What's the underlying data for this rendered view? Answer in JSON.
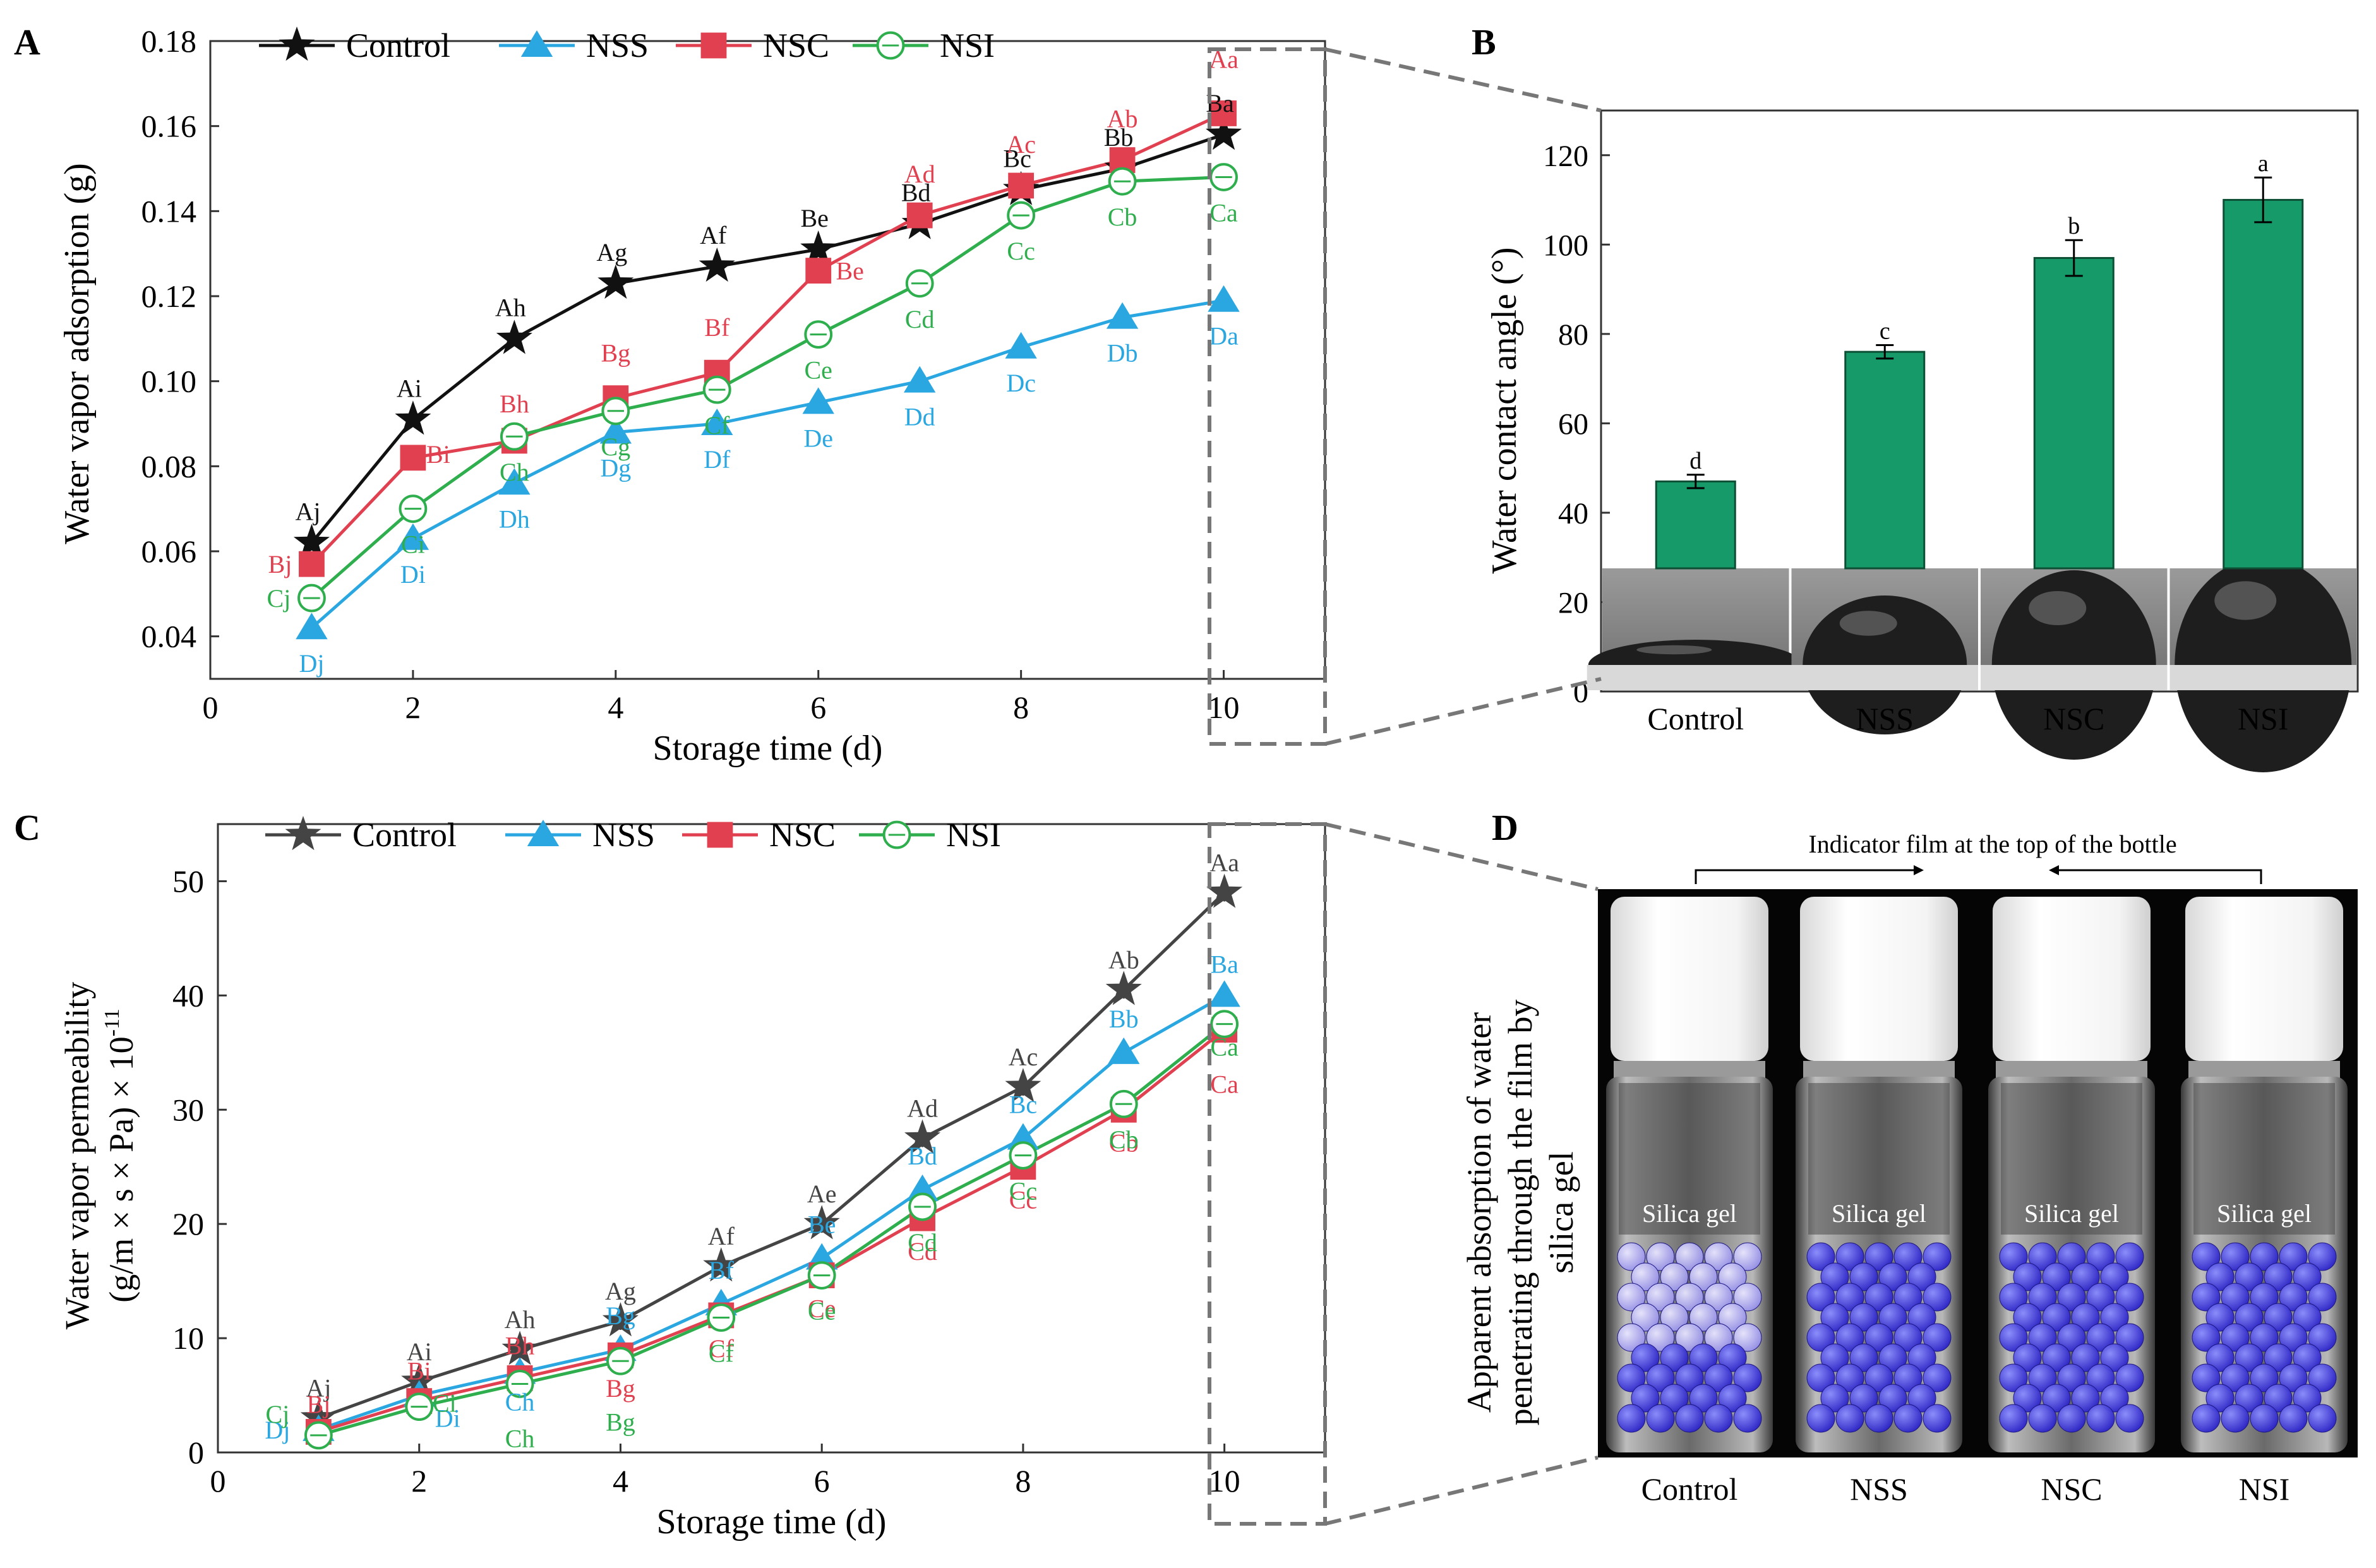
{
  "colors": {
    "control": "#111111",
    "control_c": "#444444",
    "nss": "#2aa7e0",
    "nsc": "#e0404f",
    "nsi": "#2fae4e",
    "bar": "#169a69",
    "dashed": "#777777"
  },
  "chart_data": [
    {
      "panel": "A",
      "type": "line",
      "xlabel": "Storage time (d)",
      "ylabel": "Water vapor adsorption (g)",
      "xlim": [
        0,
        11
      ],
      "ylim": [
        0.03,
        0.18
      ],
      "xticks": [
        "0",
        "2",
        "4",
        "6",
        "8",
        "10"
      ],
      "yticks": [
        "0.04",
        "0.06",
        "0.08",
        "0.10",
        "0.12",
        "0.14",
        "0.16",
        "0.18"
      ],
      "x": [
        1,
        2,
        3,
        4,
        5,
        6,
        7,
        8,
        9,
        10
      ],
      "series": [
        {
          "name": "Control",
          "marker": "star",
          "values": [
            0.062,
            0.091,
            0.11,
            0.123,
            0.127,
            0.131,
            0.137,
            0.145,
            0.15,
            0.158
          ],
          "labels": [
            "Aj",
            "Ai",
            "Ah",
            "Ag",
            "Af",
            "Be",
            "Bd",
            "Bc",
            "Bb",
            "Ba"
          ]
        },
        {
          "name": "NSS",
          "marker": "triangle",
          "values": [
            0.042,
            0.063,
            0.076,
            0.088,
            0.09,
            0.095,
            0.1,
            0.108,
            0.115,
            0.119
          ],
          "labels": [
            "Dj",
            "Di",
            "Dh",
            "Dg",
            "Df",
            "De",
            "Dd",
            "Dc",
            "Db",
            "Da"
          ]
        },
        {
          "name": "NSC",
          "marker": "square",
          "values": [
            0.057,
            0.082,
            0.086,
            0.096,
            0.102,
            0.126,
            0.139,
            0.146,
            0.152,
            0.163
          ],
          "labels": [
            "Bj",
            "Bi",
            "Bh",
            "Bg",
            "Bf",
            "Be",
            "Ad",
            "Ac",
            "Ab",
            "Aa"
          ]
        },
        {
          "name": "NSI",
          "marker": "circle",
          "values": [
            0.049,
            0.07,
            0.087,
            0.093,
            0.098,
            0.111,
            0.123,
            0.139,
            0.147,
            0.148
          ],
          "labels": [
            "Cj",
            "Ci",
            "Ch",
            "Cg",
            "Cf",
            "Ce",
            "Cd",
            "Cc",
            "Cb",
            "Ca"
          ]
        }
      ]
    },
    {
      "panel": "B",
      "type": "bar",
      "ylabel": "Water contact angle (°)",
      "ylim": [
        0,
        130
      ],
      "yticks": [
        "0",
        "20",
        "40",
        "60",
        "80",
        "100",
        "120"
      ],
      "categories": [
        "Control",
        "NSS",
        "NSC",
        "NSI"
      ],
      "values": [
        47,
        76,
        97,
        110
      ],
      "errors": [
        1.5,
        1.5,
        4,
        5
      ],
      "labels": [
        "d",
        "c",
        "b",
        "a"
      ]
    },
    {
      "panel": "C",
      "type": "line",
      "xlabel": "Storage time (d)",
      "ylabel_line1": "Water vapor permeability",
      "ylabel_line2": "(g/m × s × Pa) × 10",
      "ylabel_exp": "-11",
      "xlim": [
        0,
        11
      ],
      "ylim": [
        0,
        55
      ],
      "xticks": [
        "0",
        "2",
        "4",
        "6",
        "8",
        "10"
      ],
      "yticks": [
        "0",
        "10",
        "20",
        "30",
        "40",
        "50"
      ],
      "x": [
        1,
        2,
        3,
        4,
        5,
        6,
        7,
        8,
        9,
        10
      ],
      "series": [
        {
          "name": "Control",
          "marker": "star",
          "values": [
            3.0,
            6.2,
            9.0,
            11.5,
            16.3,
            20.0,
            27.5,
            32.0,
            40.5,
            49.0
          ],
          "labels": [
            "Aj",
            "Ai",
            "Ah",
            "Ag",
            "Af",
            "Ae",
            "Ad",
            "Ac",
            "Ab",
            "Aa"
          ]
        },
        {
          "name": "NSS",
          "marker": "triangle",
          "values": [
            2.0,
            5.0,
            7.0,
            9.0,
            13.0,
            17.0,
            23.0,
            27.5,
            35.0,
            40.0
          ],
          "labels": [
            "Dj",
            "Di",
            "Ch",
            "Bg",
            "Bf",
            "Be",
            "Bd",
            "Bc",
            "Bb",
            "Ba"
          ]
        },
        {
          "name": "NSC",
          "marker": "square",
          "values": [
            1.8,
            4.5,
            6.5,
            8.5,
            12.0,
            15.5,
            20.5,
            25.0,
            30.0,
            37.0
          ],
          "labels": [
            "Bj",
            "Bi",
            "Bh",
            "Bg",
            "Cf",
            "Ce",
            "Cd",
            "Cc",
            "Cb",
            "Ca"
          ]
        },
        {
          "name": "NSI",
          "marker": "circle",
          "values": [
            1.5,
            4.0,
            6.0,
            8.0,
            11.8,
            15.5,
            21.5,
            26.0,
            30.5,
            37.5
          ],
          "labels": [
            "Cj",
            "Ci",
            "Ch",
            "Bg",
            "Cf",
            "Ce",
            "Cd",
            "Cc",
            "Cb",
            "Ca"
          ]
        }
      ]
    }
  ],
  "panelA": {
    "letter": "A"
  },
  "panelB": {
    "letter": "B"
  },
  "panelC": {
    "letter": "C"
  },
  "panelD": {
    "letter": "D",
    "ylabel_line1": "Apparent absorption of water",
    "ylabel_line2": "penetrating through the film by",
    "ylabel_line3": "silica gel",
    "indicator": "Indicator film at the top of the bottle",
    "gel_label": "Silica gel",
    "bottles": [
      "Control",
      "NSS",
      "NSC",
      "NSI"
    ]
  },
  "legend_names": [
    "Control",
    "NSS",
    "NSC",
    "NSI"
  ]
}
